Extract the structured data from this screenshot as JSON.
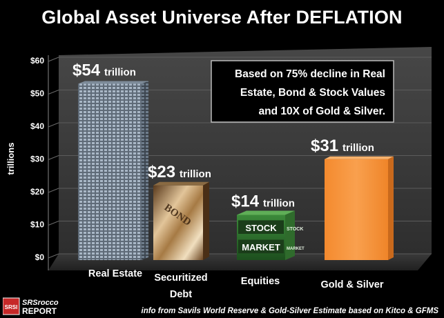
{
  "title": "Global Asset Universe After DEFLATION",
  "annotation": {
    "line1": "Based on 75% decline in Real",
    "line2": "Estate, Bond & Stock Values",
    "line3": "and 10X of Gold & Silver."
  },
  "footer": {
    "source": "info from Savils World Reserve & Gold-Silver Estimate based on Kitco & GFMS",
    "logo_text_top": "SRSrocco",
    "logo_text_bottom": "REPORT",
    "logo_badge": "SRSI"
  },
  "colors": {
    "background": "#000000",
    "wall": "#3a3a3a",
    "floor": "#2a2a2a",
    "gold_bar": "#f7923a"
  },
  "chart_data": {
    "type": "bar",
    "ylabel": "trillions",
    "ylim": [
      0,
      60
    ],
    "ticks": [
      "$0",
      "$10",
      "$20",
      "$30",
      "$40",
      "$50",
      "$60"
    ],
    "categories": [
      {
        "line1": "Real Estate",
        "line2": ""
      },
      {
        "line1": "Securitized",
        "line2": "Debt"
      },
      {
        "line1": "Equities",
        "line2": ""
      },
      {
        "line1": "Gold & Silver",
        "line2": ""
      }
    ],
    "values": [
      54,
      23,
      14,
      31
    ],
    "value_labels": [
      {
        "amount": "$54",
        "unit": "trillion"
      },
      {
        "amount": "$23",
        "unit": "trillion"
      },
      {
        "amount": "$14",
        "unit": "trillion"
      },
      {
        "amount": "$31",
        "unit": "trillion"
      }
    ],
    "bar_styles": [
      "skyscraper",
      "bond-certificate",
      "stock-market-cube",
      "solid-orange"
    ],
    "grid": true,
    "legend": "none"
  },
  "equities_cube": {
    "front_top": "STOCK",
    "front_bottom": "MARKET",
    "side_top": "STOCK",
    "side_bottom": "MARKET"
  },
  "bond_text": "BOND"
}
